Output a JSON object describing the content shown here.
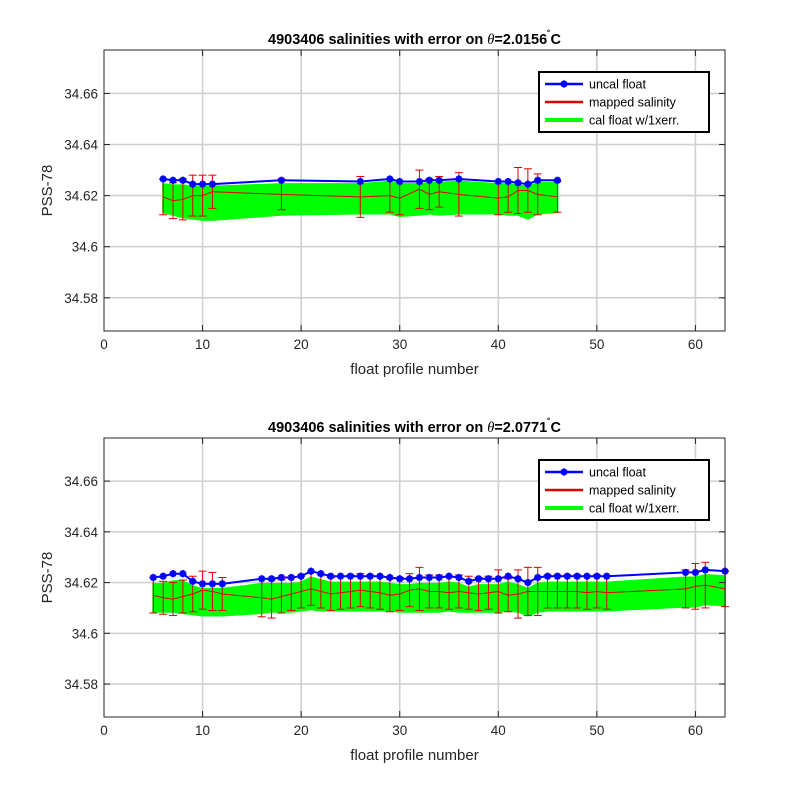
{
  "chart_data": [
    {
      "type": "line",
      "title": "4903406 salinities with error on θ=2.0156˚C",
      "title_parts": {
        "prefix": "4903406 salinities with error on ",
        "theta": "θ",
        "value": "=2.0156",
        "degree": "˚",
        "unit": "C"
      },
      "xlabel": "float profile number",
      "ylabel": "PSS-78",
      "xlim": [
        0,
        63
      ],
      "ylim": [
        34.567,
        34.677
      ],
      "xticks": [
        0,
        10,
        20,
        30,
        40,
        50,
        60
      ],
      "xtick_labels": [
        "0",
        "10",
        "20",
        "30",
        "40",
        "50",
        "60"
      ],
      "yticks": [
        34.58,
        34.6,
        34.62,
        34.64,
        34.66
      ],
      "ytick_labels": [
        "34.58",
        "34.6",
        "34.62",
        "34.64",
        "34.66"
      ],
      "grid": true,
      "legend_position": "top-right",
      "legend": [
        "uncal float",
        "mapped salinity",
        "cal float w/1xerr."
      ],
      "series": [
        {
          "name": "uncal float",
          "color": "#0000ff",
          "x": [
            6,
            7,
            8,
            9,
            10,
            11,
            18,
            26,
            29,
            30,
            32,
            33,
            34,
            36,
            40,
            41,
            42,
            43,
            44,
            46
          ],
          "values": [
            34.6265,
            34.626,
            34.626,
            34.6245,
            34.6245,
            34.6245,
            34.626,
            34.6255,
            34.6265,
            34.6255,
            34.6255,
            34.626,
            34.626,
            34.6265,
            34.6255,
            34.6255,
            34.625,
            34.6245,
            34.626,
            34.626
          ]
        },
        {
          "name": "mapped salinity",
          "color": "#dd0000",
          "x": [
            6,
            7,
            8,
            9,
            10,
            11,
            18,
            26,
            29,
            30,
            32,
            33,
            34,
            36,
            40,
            41,
            42,
            43,
            44,
            46
          ],
          "values": [
            34.6195,
            34.618,
            34.6185,
            34.62,
            34.62,
            34.6215,
            34.6205,
            34.6195,
            34.62,
            34.619,
            34.6225,
            34.6205,
            34.6215,
            34.6205,
            34.619,
            34.6195,
            34.622,
            34.622,
            34.6205,
            34.6195
          ],
          "error": [
            0.007,
            0.007,
            0.008,
            0.008,
            0.008,
            0.0065,
            0.006,
            0.008,
            0.0065,
            0.0065,
            0.0075,
            0.006,
            0.006,
            0.0085,
            0.0065,
            0.006,
            0.009,
            0.0085,
            0.008,
            0.006
          ]
        },
        {
          "name": "cal float w/1xerr.",
          "color": "#00ff00",
          "x": [
            6,
            7,
            8,
            9,
            10,
            11,
            18,
            26,
            29,
            30,
            32,
            33,
            34,
            36,
            40,
            41,
            42,
            43,
            44,
            46
          ],
          "upper": [
            34.6245,
            34.624,
            34.624,
            34.6235,
            34.6235,
            34.6235,
            34.6245,
            34.6245,
            34.6255,
            34.6245,
            34.6245,
            34.625,
            34.625,
            34.6255,
            34.6245,
            34.6245,
            34.624,
            34.6235,
            34.625,
            34.625
          ],
          "lower": [
            34.6135,
            34.6125,
            34.6115,
            34.611,
            34.6105,
            34.6105,
            34.6125,
            34.613,
            34.613,
            34.612,
            34.6125,
            34.613,
            34.6125,
            34.613,
            34.613,
            34.6125,
            34.6125,
            34.611,
            34.613,
            34.6135
          ]
        }
      ]
    },
    {
      "type": "line",
      "title": "4903406 salinities with error on θ=2.0771˚C",
      "title_parts": {
        "prefix": "4903406 salinities with error on ",
        "theta": "θ",
        "value": "=2.0771",
        "degree": "˚",
        "unit": "C"
      },
      "xlabel": "float profile number",
      "ylabel": "PSS-78",
      "xlim": [
        0,
        63
      ],
      "ylim": [
        34.567,
        34.677
      ],
      "xticks": [
        0,
        10,
        20,
        30,
        40,
        50,
        60
      ],
      "xtick_labels": [
        "0",
        "10",
        "20",
        "30",
        "40",
        "50",
        "60"
      ],
      "yticks": [
        34.58,
        34.6,
        34.62,
        34.64,
        34.66
      ],
      "ytick_labels": [
        "34.58",
        "34.6",
        "34.62",
        "34.64",
        "34.66"
      ],
      "grid": true,
      "legend_position": "top-right",
      "legend": [
        "uncal float",
        "mapped salinity",
        "cal float w/1xerr."
      ],
      "series": [
        {
          "name": "uncal float",
          "color": "#0000ff",
          "x": [
            5,
            6,
            7,
            8,
            9,
            10,
            11,
            12,
            16,
            17,
            18,
            19,
            20,
            21,
            22,
            23,
            24,
            25,
            26,
            27,
            28,
            29,
            30,
            31,
            32,
            33,
            34,
            35,
            36,
            37,
            38,
            39,
            40,
            41,
            42,
            43,
            44,
            45,
            46,
            47,
            48,
            49,
            50,
            51,
            59,
            60,
            61,
            63
          ],
          "values": [
            34.622,
            34.6225,
            34.6235,
            34.6235,
            34.6205,
            34.6195,
            34.6195,
            34.6195,
            34.6215,
            34.6215,
            34.622,
            34.622,
            34.6225,
            34.6245,
            34.6235,
            34.6225,
            34.6225,
            34.6225,
            34.6225,
            34.6225,
            34.6225,
            34.622,
            34.6215,
            34.6215,
            34.622,
            34.622,
            34.622,
            34.6225,
            34.622,
            34.6205,
            34.6215,
            34.6215,
            34.6215,
            34.6225,
            34.6215,
            34.62,
            34.622,
            34.6225,
            34.6225,
            34.6225,
            34.6225,
            34.6225,
            34.6225,
            34.6225,
            34.624,
            34.624,
            34.625,
            34.6245
          ]
        },
        {
          "name": "mapped salinity",
          "color": "#dd0000",
          "x": [
            5,
            6,
            7,
            8,
            9,
            10,
            11,
            12,
            16,
            17,
            18,
            19,
            20,
            21,
            22,
            23,
            24,
            25,
            26,
            27,
            28,
            29,
            30,
            31,
            32,
            33,
            34,
            35,
            36,
            37,
            38,
            39,
            40,
            41,
            42,
            43,
            44,
            45,
            46,
            47,
            48,
            49,
            50,
            51,
            59,
            60,
            61,
            63
          ],
          "values": [
            34.615,
            34.614,
            34.6135,
            34.6145,
            34.6155,
            34.617,
            34.6165,
            34.6155,
            34.614,
            34.6135,
            34.6145,
            34.6155,
            34.6165,
            34.6175,
            34.6165,
            34.6155,
            34.616,
            34.6165,
            34.617,
            34.6165,
            34.616,
            34.615,
            34.6155,
            34.617,
            34.6175,
            34.6165,
            34.6165,
            34.616,
            34.6165,
            34.616,
            34.6155,
            34.616,
            34.6165,
            34.615,
            34.6155,
            34.6165,
            34.6165,
            34.6165,
            34.6165,
            34.6165,
            34.6165,
            34.616,
            34.6165,
            34.616,
            34.6175,
            34.6185,
            34.619,
            34.6175
          ],
          "error": [
            0.007,
            0.0065,
            0.0065,
            0.0065,
            0.007,
            0.0075,
            0.0075,
            0.0065,
            0.0075,
            0.0075,
            0.0065,
            0.0065,
            0.0065,
            0.0065,
            0.0065,
            0.0065,
            0.0065,
            0.0065,
            0.0065,
            0.0065,
            0.0065,
            0.0065,
            0.0065,
            0.0065,
            0.0085,
            0.0065,
            0.0065,
            0.0065,
            0.0065,
            0.0065,
            0.0065,
            0.0065,
            0.0085,
            0.0065,
            0.0095,
            0.0095,
            0.0095,
            0.0065,
            0.0065,
            0.0065,
            0.0065,
            0.0065,
            0.0065,
            0.0065,
            0.0075,
            0.009,
            0.009,
            0.007
          ]
        },
        {
          "name": "cal float w/1xerr.",
          "color": "#00ff00",
          "x": [
            5,
            6,
            7,
            8,
            9,
            10,
            11,
            12,
            16,
            17,
            18,
            19,
            20,
            21,
            22,
            23,
            24,
            25,
            26,
            27,
            28,
            29,
            30,
            31,
            32,
            33,
            34,
            35,
            36,
            37,
            38,
            39,
            40,
            41,
            42,
            43,
            44,
            45,
            46,
            47,
            48,
            49,
            50,
            51,
            59,
            60,
            61,
            63
          ],
          "upper": [
            34.6195,
            34.6195,
            34.6205,
            34.6205,
            34.6185,
            34.6175,
            34.6175,
            34.6175,
            34.6195,
            34.6195,
            34.6195,
            34.6195,
            34.62,
            34.622,
            34.621,
            34.62,
            34.62,
            34.62,
            34.62,
            34.62,
            34.62,
            34.6195,
            34.619,
            34.619,
            34.6195,
            34.6195,
            34.6195,
            34.62,
            34.6195,
            34.618,
            34.619,
            34.619,
            34.619,
            34.62,
            34.619,
            34.6175,
            34.6195,
            34.62,
            34.62,
            34.62,
            34.62,
            34.62,
            34.62,
            34.62,
            34.622,
            34.622,
            34.623,
            34.6225
          ],
          "lower": [
            34.6085,
            34.6085,
            34.6085,
            34.608,
            34.6075,
            34.607,
            34.607,
            34.607,
            34.608,
            34.6085,
            34.6085,
            34.6085,
            34.609,
            34.6095,
            34.609,
            34.609,
            34.609,
            34.609,
            34.609,
            34.609,
            34.609,
            34.609,
            34.6085,
            34.6085,
            34.6085,
            34.6085,
            34.6085,
            34.609,
            34.6085,
            34.6085,
            34.6085,
            34.6085,
            34.6085,
            34.609,
            34.6085,
            34.607,
            34.6085,
            34.609,
            34.609,
            34.609,
            34.609,
            34.609,
            34.609,
            34.609,
            34.6105,
            34.6105,
            34.6115,
            34.611
          ]
        }
      ]
    }
  ]
}
